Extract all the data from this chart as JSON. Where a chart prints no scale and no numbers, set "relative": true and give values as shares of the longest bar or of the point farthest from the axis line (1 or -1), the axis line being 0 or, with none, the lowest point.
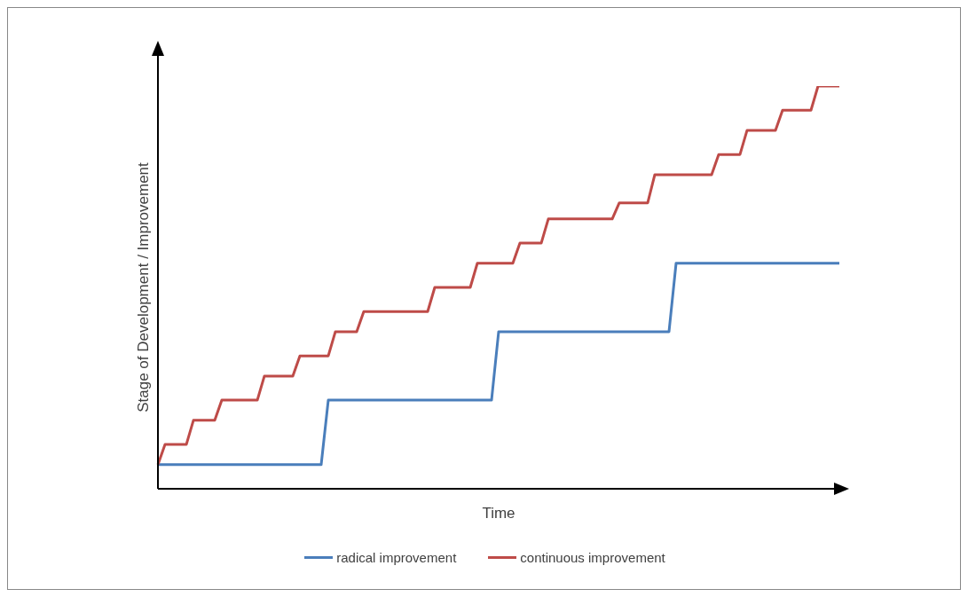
{
  "chart_data": {
    "type": "line",
    "relative": true,
    "xlabel": "Time",
    "ylabel": "Stage of Development / Improvement",
    "legend": "bottom",
    "marker": "none",
    "line_style": "solid",
    "categories": [
      null,
      null,
      null,
      null,
      null,
      null,
      null,
      null,
      null,
      null,
      null,
      null,
      null,
      null,
      null,
      null,
      null,
      null,
      null,
      null,
      null,
      null,
      null,
      null,
      null,
      null,
      null,
      null,
      null,
      null,
      null,
      null,
      null,
      null,
      null,
      null,
      null,
      null,
      null,
      null,
      null,
      null,
      null,
      null,
      null,
      null,
      null,
      null,
      null,
      null,
      null,
      null,
      null,
      null,
      null,
      null,
      null,
      null,
      null,
      null,
      null,
      null,
      null,
      null,
      null,
      null,
      null,
      null,
      null,
      null,
      null,
      null,
      null,
      null,
      null,
      null,
      null,
      null,
      null,
      null,
      null,
      null,
      null,
      null,
      null,
      null,
      null,
      null,
      null,
      null,
      null,
      null,
      null,
      null,
      null,
      null,
      null
    ],
    "series": [
      {
        "name": "radical improvement",
        "color": "#4a7ebb",
        "values": [
          0.06,
          0.06,
          0.06,
          0.06,
          0.06,
          0.06,
          0.06,
          0.06,
          0.06,
          0.06,
          0.06,
          0.06,
          0.06,
          0.06,
          0.06,
          0.06,
          0.06,
          0.06,
          0.06,
          0.06,
          0.06,
          0.06,
          0.06,
          0.06,
          0.22,
          0.22,
          0.22,
          0.22,
          0.22,
          0.22,
          0.22,
          0.22,
          0.22,
          0.22,
          0.22,
          0.22,
          0.22,
          0.22,
          0.22,
          0.22,
          0.22,
          0.22,
          0.22,
          0.22,
          0.22,
          0.22,
          0.22,
          0.22,
          0.39,
          0.39,
          0.39,
          0.39,
          0.39,
          0.39,
          0.39,
          0.39,
          0.39,
          0.39,
          0.39,
          0.39,
          0.39,
          0.39,
          0.39,
          0.39,
          0.39,
          0.39,
          0.39,
          0.39,
          0.39,
          0.39,
          0.39,
          0.39,
          0.39,
          0.56,
          0.56,
          0.56,
          0.56,
          0.56,
          0.56,
          0.56,
          0.56,
          0.56,
          0.56,
          0.56,
          0.56,
          0.56,
          0.56,
          0.56,
          0.56,
          0.56,
          0.56,
          0.56,
          0.56,
          0.56,
          0.56,
          0.56,
          0.56
        ]
      },
      {
        "name": "continuous improvement",
        "color": "#be4b48",
        "values": [
          0.06,
          0.11,
          0.11,
          0.11,
          0.11,
          0.17,
          0.17,
          0.17,
          0.17,
          0.22,
          0.22,
          0.22,
          0.22,
          0.22,
          0.22,
          0.28,
          0.28,
          0.28,
          0.28,
          0.28,
          0.33,
          0.33,
          0.33,
          0.33,
          0.33,
          0.39,
          0.39,
          0.39,
          0.39,
          0.44,
          0.44,
          0.44,
          0.44,
          0.44,
          0.44,
          0.44,
          0.44,
          0.44,
          0.44,
          0.5,
          0.5,
          0.5,
          0.5,
          0.5,
          0.5,
          0.56,
          0.56,
          0.56,
          0.56,
          0.56,
          0.56,
          0.61,
          0.61,
          0.61,
          0.61,
          0.67,
          0.67,
          0.67,
          0.67,
          0.67,
          0.67,
          0.67,
          0.67,
          0.67,
          0.67,
          0.71,
          0.71,
          0.71,
          0.71,
          0.71,
          0.78,
          0.78,
          0.78,
          0.78,
          0.78,
          0.78,
          0.78,
          0.78,
          0.78,
          0.83,
          0.83,
          0.83,
          0.83,
          0.89,
          0.89,
          0.89,
          0.89,
          0.89,
          0.94,
          0.94,
          0.94,
          0.94,
          0.94,
          1,
          1,
          1,
          1
        ]
      }
    ]
  }
}
